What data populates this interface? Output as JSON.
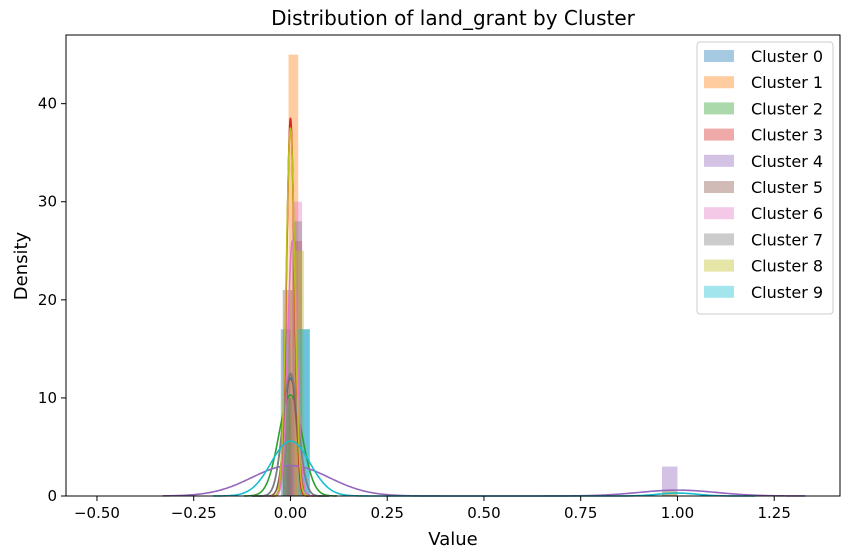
{
  "chart_data": {
    "type": "histogram-kde",
    "title": "Distribution of land_grant by Cluster",
    "xlabel": "Value",
    "ylabel": "Density",
    "xlim": [
      -0.58,
      1.42
    ],
    "ylim": [
      0,
      47
    ],
    "xticks": [
      -0.5,
      -0.25,
      0.0,
      0.25,
      0.5,
      0.75,
      1.0,
      1.25
    ],
    "xtick_labels": [
      "−0.50",
      "−0.25",
      "0.00",
      "0.25",
      "0.50",
      "0.75",
      "1.00",
      "1.25"
    ],
    "yticks": [
      0,
      10,
      20,
      30,
      40
    ],
    "ytick_labels": [
      "0",
      "10",
      "20",
      "30",
      "40"
    ],
    "grid": false,
    "legend_position": "top-right",
    "series": [
      {
        "name": "Cluster 0",
        "color": "#1f77b4",
        "bars": [
          {
            "x": [
              -0.025,
              0.0
            ],
            "y": 17
          },
          {
            "x": [
              0.025,
              0.05
            ],
            "y": 17
          }
        ],
        "kde": {
          "mu": 0.0,
          "sigma": 0.02,
          "peak": 12.0,
          "range": [
            -0.1,
            0.1
          ]
        }
      },
      {
        "name": "Cluster 1",
        "color": "#ff7f0e",
        "bars": [
          {
            "x": [
              -0.005,
              0.02
            ],
            "y": 45
          },
          {
            "x": [
              0.02,
              0.045
            ],
            "y": 0
          }
        ],
        "kde": {
          "mu": 0.0,
          "sigma": 0.01,
          "peak": 38.0,
          "range": [
            -0.05,
            0.05
          ]
        }
      },
      {
        "name": "Cluster 2",
        "color": "#2ca02c",
        "bars": [
          {
            "x": [
              -0.02,
              0.005
            ],
            "y": 10
          }
        ],
        "kde": {
          "mu": 0.0,
          "sigma": 0.03,
          "peak": 10.3,
          "range": [
            -0.12,
            0.12
          ]
        }
      },
      {
        "name": "Cluster 3",
        "color": "#d62728",
        "bars": [
          {
            "x": [
              0.005,
              0.03
            ],
            "y": 26
          }
        ],
        "kde": {
          "mu": 0.0,
          "sigma": 0.01,
          "peak": 38.5,
          "range": [
            -0.05,
            0.05
          ]
        }
      },
      {
        "name": "Cluster 4",
        "color": "#9467bd",
        "bars": [
          {
            "x": [
              -0.01,
              0.015
            ],
            "y": 3
          },
          {
            "x": [
              0.96,
              1.0
            ],
            "y": 3
          }
        ],
        "kde": {
          "mu": 0.0,
          "sigma": 0.1,
          "peak": 3.1,
          "range": [
            -0.33,
            1.33
          ],
          "mu2": 1.0,
          "sigma2": 0.1,
          "peak2": 0.6
        }
      },
      {
        "name": "Cluster 5",
        "color": "#8c564b",
        "bars": [
          {
            "x": [
              -0.02,
              0.005
            ],
            "y": 21
          }
        ],
        "kde": {
          "mu": 0.0,
          "sigma": 0.015,
          "peak": 12.5,
          "range": [
            -0.08,
            0.08
          ]
        }
      },
      {
        "name": "Cluster 6",
        "color": "#e377c2",
        "bars": [
          {
            "x": [
              0.005,
              0.03
            ],
            "y": 30
          }
        ],
        "kde": {
          "mu": 0.005,
          "sigma": 0.012,
          "peak": 26.0,
          "range": [
            -0.06,
            0.06
          ]
        }
      },
      {
        "name": "Cluster 7",
        "color": "#7f7f7f",
        "bars": [
          {
            "x": [
              0.005,
              0.03
            ],
            "y": 28
          }
        ],
        "kde": {
          "mu": 0.0,
          "sigma": 0.02,
          "peak": 12.5,
          "range": [
            -0.1,
            0.1
          ]
        }
      },
      {
        "name": "Cluster 8",
        "color": "#bcbd22",
        "bars": [
          {
            "x": [
              0.01,
              0.035
            ],
            "y": 25
          },
          {
            "x": [
              0.96,
              1.0
            ],
            "y": 0.5
          }
        ],
        "kde": {
          "mu": 0.0,
          "sigma": 0.011,
          "peak": 37.5,
          "range": [
            -0.05,
            0.05
          ],
          "mu2": 1.0,
          "sigma2": 0.03,
          "peak2": 0.4
        }
      },
      {
        "name": "Cluster 9",
        "color": "#17becf",
        "bars": [
          {
            "x": [
              0.02,
              0.05
            ],
            "y": 17
          }
        ],
        "kde": {
          "mu": 0.0,
          "sigma": 0.05,
          "peak": 5.6,
          "range": [
            -0.2,
            1.2
          ],
          "mu2": 1.0,
          "sigma2": 0.05,
          "peak2": 0.3
        }
      }
    ]
  }
}
